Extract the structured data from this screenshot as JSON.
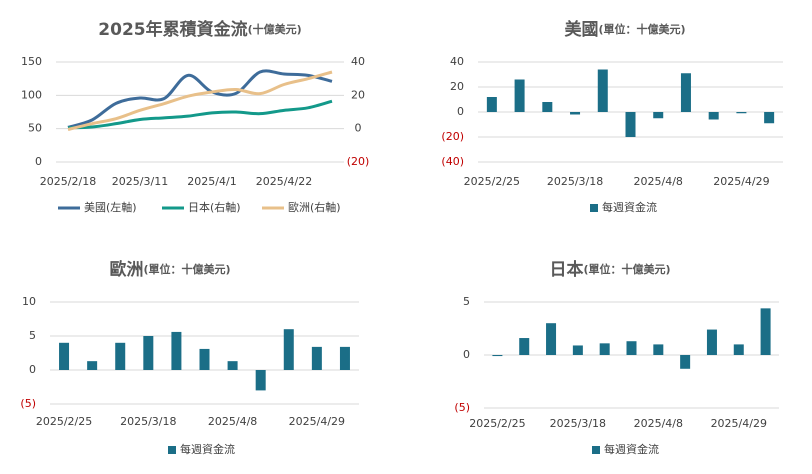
{
  "chart_data": [
    {
      "type": "line",
      "title": "2025年累積資金流",
      "subtitle": "(十億美元)",
      "categories": [
        "2025/2/18",
        null,
        null,
        "2025/3/11",
        null,
        null,
        "2025/4/1",
        null,
        null,
        "2025/4/22",
        null,
        null
      ],
      "series": [
        {
          "name": "美國(左軸)",
          "color": "#3e6c9a",
          "values": [
            52,
            63,
            88,
            96,
            95,
            130,
            105,
            103,
            135,
            132,
            130,
            121
          ]
        },
        {
          "name": "日本(右軸)",
          "color": "#13998a",
          "axis": "y2",
          "values": [
            0.5,
            1,
            3,
            5.5,
            6.5,
            7.5,
            9.5,
            10,
            9,
            11,
            12.5,
            16.5
          ]
        },
        {
          "name": "歐洲(右軸)",
          "color": "#e8c08a",
          "axis": "y2",
          "values": [
            -0.5,
            3,
            6,
            11,
            15,
            19.5,
            22,
            23.5,
            21,
            26.5,
            30,
            34
          ]
        }
      ],
      "ylim": [
        0,
        150
      ],
      "yticks": [
        0,
        50,
        100,
        150
      ],
      "y2lim": [
        -20,
        40
      ],
      "y2ticks": [
        {
          "value": -20,
          "label": "(20)"
        },
        0,
        20,
        40
      ],
      "grid": true,
      "negative_tick_color": "#c00000"
    },
    {
      "type": "bar",
      "title": "美國",
      "subtitle": "(單位：十億美元)",
      "categories": [
        "2025/2/25",
        null,
        null,
        "2025/3/18",
        null,
        null,
        "2025/4/8",
        null,
        null,
        "2025/4/29",
        null
      ],
      "series": [
        {
          "name": "每週資金流",
          "color": "#1b6e87",
          "values": [
            12,
            26,
            8,
            -2,
            34,
            -20,
            -5,
            31,
            -6,
            -1,
            -9
          ]
        }
      ],
      "ylim": [
        -40,
        40
      ],
      "yticks": [
        {
          "value": -40,
          "label": "(40)"
        },
        {
          "value": -20,
          "label": "(20)"
        },
        0,
        20,
        40
      ],
      "grid": true,
      "negative_tick_color": "#c00000"
    },
    {
      "type": "bar",
      "title": "歐洲",
      "subtitle": "(單位：十億美元)",
      "categories": [
        "2025/2/25",
        null,
        null,
        "2025/3/18",
        null,
        null,
        "2025/4/8",
        null,
        null,
        "2025/4/29",
        null
      ],
      "series": [
        {
          "name": "每週資金流",
          "color": "#1b6e87",
          "values": [
            4,
            1.3,
            4,
            5,
            5.6,
            3.1,
            1.3,
            -3,
            6,
            3.4,
            3.4
          ]
        }
      ],
      "ylim": [
        -5,
        10
      ],
      "yticks": [
        {
          "value": -5,
          "label": "(5)"
        },
        0,
        5,
        10
      ],
      "grid": true,
      "negative_tick_color": "#c00000"
    },
    {
      "type": "bar",
      "title": "日本",
      "subtitle": "(單位：十億美元)",
      "categories": [
        "2025/2/25",
        null,
        null,
        "2025/3/18",
        null,
        null,
        "2025/4/8",
        null,
        null,
        "2025/4/29",
        null
      ],
      "series": [
        {
          "name": "每週資金流",
          "color": "#1b6e87",
          "values": [
            -0.1,
            1.6,
            3.0,
            0.9,
            1.1,
            1.3,
            1.0,
            -1.3,
            2.4,
            1.0,
            4.4
          ]
        }
      ],
      "ylim": [
        -5,
        5
      ],
      "yticks": [
        {
          "value": -5,
          "label": "(5)"
        },
        0,
        5
      ],
      "grid": true,
      "negative_tick_color": "#c00000"
    }
  ]
}
